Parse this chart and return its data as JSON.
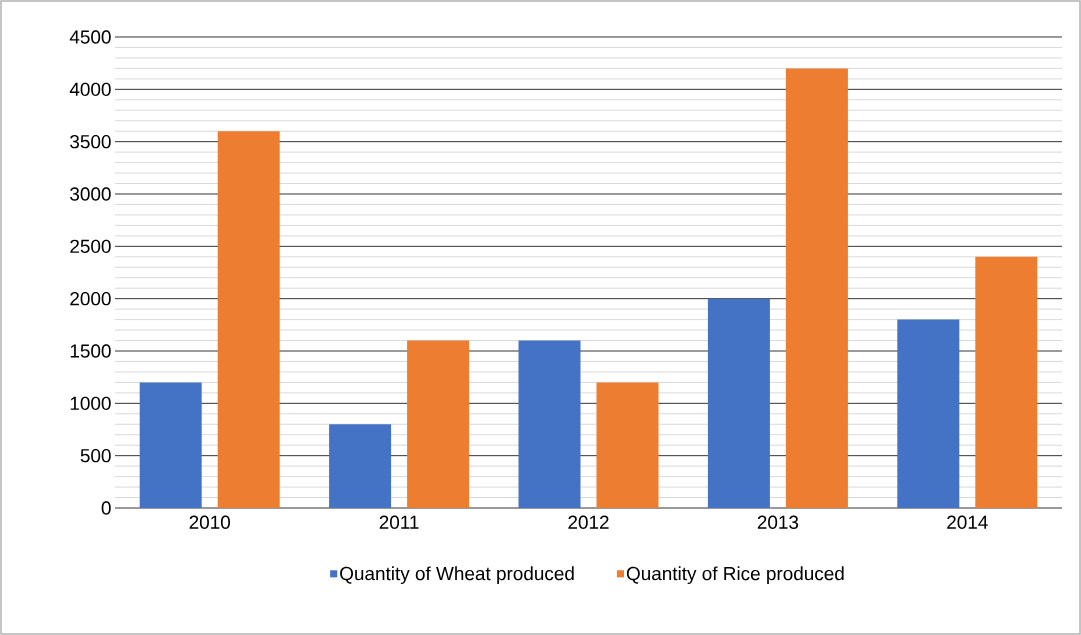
{
  "chart_data": {
    "type": "bar",
    "categories": [
      "2010",
      "2011",
      "2012",
      "2013",
      "2014"
    ],
    "series": [
      {
        "name": "Quantity of Wheat produced",
        "color": "#4472c4",
        "values": [
          1200,
          800,
          1600,
          2000,
          1800
        ]
      },
      {
        "name": "Quantity of Rice produced",
        "color": "#ed7d31",
        "values": [
          3600,
          1600,
          1200,
          4200,
          2400
        ]
      }
    ],
    "ylim": [
      0,
      4500
    ],
    "yticks": [
      0,
      500,
      1000,
      1500,
      2000,
      2500,
      3000,
      3500,
      4000,
      4500
    ],
    "grid": "y",
    "legend": "bottom"
  }
}
